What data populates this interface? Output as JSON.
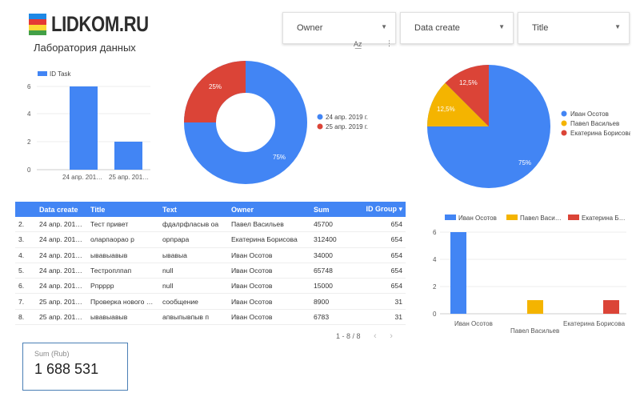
{
  "logo": {
    "text": "LIDKOM.RU",
    "colors": [
      "#1e88e5",
      "#e53935",
      "#fdd835",
      "#43a047"
    ]
  },
  "subtitle": "Лаборатория данных",
  "filters": [
    {
      "label": "Owner"
    },
    {
      "label": "Data create"
    },
    {
      "label": "Title"
    }
  ],
  "toolbar_icons": [
    "sort-az-icon",
    "more-vert-icon"
  ],
  "charts": [
    {
      "type": "bar",
      "legend": [
        "ID Task"
      ],
      "categories": [
        "24 апр. 201…",
        "25 апр. 201…"
      ],
      "values": [
        6,
        2
      ],
      "yticks": [
        "0",
        "2",
        "4",
        "6"
      ],
      "color": "#4285f4"
    },
    {
      "type": "donut",
      "slices": [
        {
          "label": "24 апр. 2019 г.",
          "value": 75,
          "text": "75%",
          "color": "#4285f4"
        },
        {
          "label": "25 апр. 2019 г.",
          "value": 25,
          "text": "25%",
          "color": "#db4437"
        }
      ]
    },
    {
      "type": "pie",
      "slices": [
        {
          "label": "Иван Осотов",
          "value": 75,
          "text": "75%",
          "color": "#4285f4"
        },
        {
          "label": "Павел Васильев",
          "value": 12.5,
          "text": "12,5%",
          "color": "#f4b400"
        },
        {
          "label": "Екатерина Борисова",
          "value": 12.5,
          "text": "12,5%",
          "color": "#db4437"
        }
      ]
    },
    {
      "type": "bar",
      "legend": [
        "Иван Осотов",
        "Павел Васи…",
        "Екатерина Б…"
      ],
      "categories": [
        "Иван Осотов",
        "Павел Васильев",
        "Екатерина Борисова"
      ],
      "values": [
        6,
        1,
        1
      ],
      "colors": [
        "#4285f4",
        "#f4b400",
        "#db4437"
      ],
      "yticks": [
        "0",
        "2",
        "4",
        "6"
      ]
    }
  ],
  "table": {
    "headers": [
      "",
      "Data create",
      "Title",
      "Text",
      "Owner",
      "Sum",
      "ID Group ▾"
    ],
    "rows": [
      [
        "2.",
        "24 апр. 201…",
        "Тест привет",
        "фдалрфласыв оа",
        "Павел Васильев",
        "45700",
        "654"
      ],
      [
        "3.",
        "24 апр. 201…",
        "оларпаорао р",
        "орпрара",
        "Екатерина Борисова",
        "312400",
        "654"
      ],
      [
        "4.",
        "24 апр. 201…",
        "ывавыавыв",
        "ывавыа",
        "Иван Осотов",
        "34000",
        "654"
      ],
      [
        "5.",
        "24 апр. 201…",
        "Тестроплпап",
        "null",
        "Иван Осотов",
        "65748",
        "654"
      ],
      [
        "6.",
        "24 апр. 201…",
        "Рпрррр",
        "null",
        "Иван Осотов",
        "15000",
        "654"
      ],
      [
        "7.",
        "25 апр. 201…",
        "Проверка нового …",
        "сообщение",
        "Иван Осотов",
        "8900",
        "31"
      ],
      [
        "8.",
        "25 апр. 201…",
        "ывавыавыв",
        "апвыпывпыв п",
        "Иван Осотов",
        "6783",
        "31"
      ]
    ],
    "pager": "1 - 8 / 8"
  },
  "scorecard": {
    "label": "Sum (Rub)",
    "value": "1 688 531"
  }
}
